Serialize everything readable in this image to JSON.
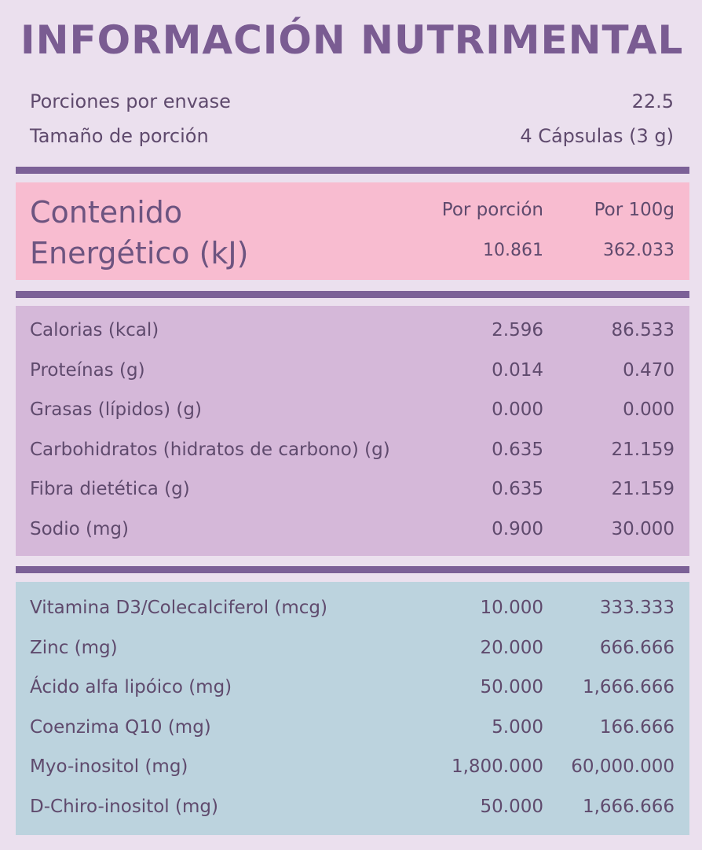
{
  "title": "INFORMACIÓN NUTRIMENTAL",
  "servings": {
    "per_container_label": "Porciones por envase",
    "per_container_value": "22.5",
    "size_label": "Tamaño de porción",
    "size_value": "4 Cápsulas (3 g)"
  },
  "energy": {
    "label_line1": "Contenido",
    "label_line2": "Energético (kJ)",
    "col1_header": "Por porción",
    "col2_header": "Por 100g",
    "per_serving": "10.861",
    "per_100g": "362.033"
  },
  "macros": [
    {
      "name": "Calorias (kcal)",
      "per_serving": "2.596",
      "per_100g": "86.533"
    },
    {
      "name": "Proteínas (g)",
      "per_serving": "0.014",
      "per_100g": "0.470"
    },
    {
      "name": "Grasas (lípidos) (g)",
      "per_serving": "0.000",
      "per_100g": "0.000"
    },
    {
      "name": "Carbohidratos (hidratos de carbono) (g)",
      "per_serving": "0.635",
      "per_100g": "21.159"
    },
    {
      "name": "Fibra dietética (g)",
      "per_serving": "0.635",
      "per_100g": "21.159"
    },
    {
      "name": "Sodio (mg)",
      "per_serving": "0.900",
      "per_100g": "30.000"
    }
  ],
  "micros": [
    {
      "name": "Vitamina D3/Colecalciferol (mcg)",
      "per_serving": "10.000",
      "per_100g": "333.333"
    },
    {
      "name": "Zinc (mg)",
      "per_serving": "20.000",
      "per_100g": "666.666"
    },
    {
      "name": "Ácido alfa lipóico (mg)",
      "per_serving": "50.000",
      "per_100g": "1,666.666"
    },
    {
      "name": "Coenzima Q10 (mg)",
      "per_serving": "5.000",
      "per_100g": "166.666"
    },
    {
      "name": "Myo-inositol (mg)",
      "per_serving": "1,800.000",
      "per_100g": "60,000.000"
    },
    {
      "name": "D-Chiro-inositol (mg)",
      "per_serving": "50.000",
      "per_100g": "1,666.666"
    }
  ],
  "colors": {
    "title": "#7a5c92",
    "divider": "#7c6197",
    "energy_bg": "#f8bcd0",
    "macro_bg": "#d5b8d9",
    "micro_bg": "#bcd3de",
    "page_bg": "#ebe0ee"
  }
}
